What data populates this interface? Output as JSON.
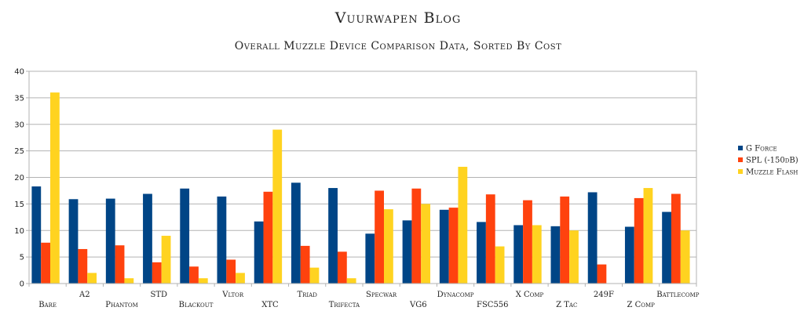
{
  "chart_data": {
    "type": "bar",
    "title": "Vuurwapen Blog",
    "subtitle": "Overall Muzzle Device Comparison Data, Sorted By Cost",
    "xlabel": "",
    "ylabel": "",
    "ylim": [
      0,
      40
    ],
    "yticks": [
      0,
      5,
      10,
      15,
      20,
      25,
      30,
      35,
      40
    ],
    "grid": true,
    "legend_position": "right",
    "categories": [
      "Bare",
      "A2",
      "Phantom",
      "STD",
      "Blackout",
      "Vltor",
      "XTC",
      "Triad",
      "Trifecta",
      "Specwar",
      "VG6",
      "Dynacomp",
      "FSC556",
      "X Comp",
      "Z Tac",
      "249F",
      "Z Comp",
      "Battlecomp"
    ],
    "series": [
      {
        "name": "G Force",
        "color": "#004586",
        "values": [
          18.3,
          15.9,
          16.0,
          16.9,
          17.9,
          16.4,
          11.7,
          19.0,
          18.0,
          9.4,
          11.9,
          13.9,
          11.6,
          11.0,
          10.8,
          17.2,
          10.7,
          13.5
        ]
      },
      {
        "name": "SPL (-150dB)",
        "color": "#ff420e",
        "values": [
          7.7,
          6.5,
          7.2,
          4.0,
          3.2,
          4.5,
          17.3,
          7.1,
          6.0,
          17.5,
          17.9,
          14.3,
          16.8,
          15.7,
          16.4,
          3.6,
          16.1,
          16.9
        ]
      },
      {
        "name": "Muzzle Flash",
        "color": "#ffd320",
        "values": [
          36,
          2,
          1,
          9,
          1,
          2,
          29,
          3,
          1,
          14,
          15,
          22,
          7,
          11,
          10,
          0,
          18,
          10
        ]
      }
    ]
  }
}
